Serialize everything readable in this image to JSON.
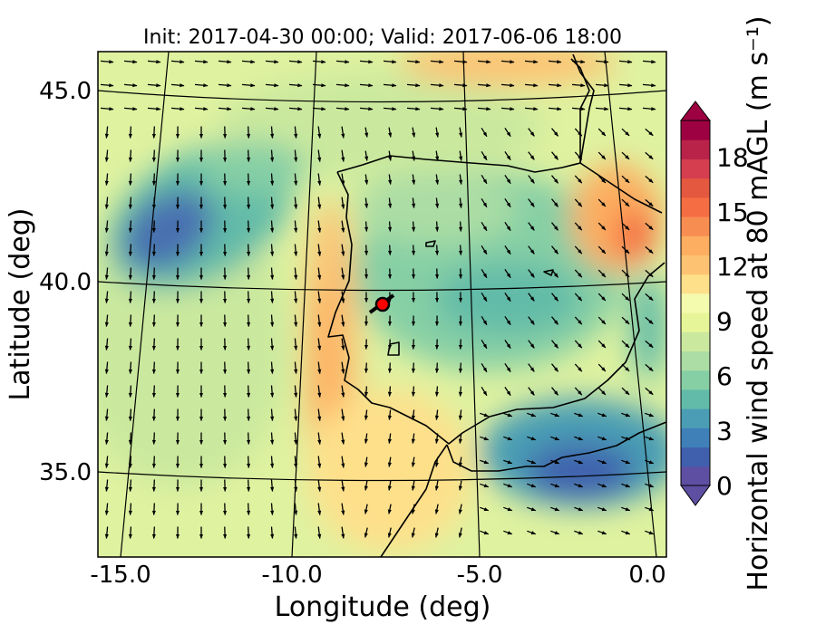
{
  "title": "Init: 2017-04-30 00:00; Valid: 2017-06-06 18:00",
  "xlabel": "Longitude (deg)",
  "ylabel": "Latitude (deg)",
  "colorbar": {
    "label": "Horizontal wind speed at 80 mAGL (m s⁻¹)",
    "ticks": [
      "0",
      "3",
      "6",
      "9",
      "12",
      "15",
      "18"
    ],
    "range": [
      0,
      20
    ],
    "colors": [
      "#5e4fa2",
      "#4060ae",
      "#3f80b9",
      "#4a9db4",
      "#62bba8",
      "#86cfa5",
      "#abdda4",
      "#cbe99e",
      "#e6f598",
      "#f5fbae",
      "#fee08b",
      "#fdc373",
      "#fdae61",
      "#f88d52",
      "#f46d43",
      "#e4583f",
      "#d53e4f",
      "#b9234a",
      "#9e0142"
    ],
    "extend": "both"
  },
  "chart_data": {
    "type": "heatmap",
    "title": "Init: 2017-04-30 00:00; Valid: 2017-06-06 18:00",
    "xlabel": "Longitude (deg)",
    "ylabel": "Latitude (deg)",
    "xticks": [
      "-15.0",
      "-10.0",
      "-5.0",
      "0.0"
    ],
    "yticks": [
      "45.0",
      "40.0",
      "35.0"
    ],
    "xlim": [
      -15.8,
      0.2
    ],
    "ylim": [
      32.8,
      46.2
    ],
    "grid": true,
    "marker": {
      "lon": -7.6,
      "lat": 39.3,
      "color": "#ff0000"
    },
    "wind_regions": [
      {
        "name": "",
        "lon": -13.7,
        "lat": 41.0,
        "speed": 1.5
      },
      {
        "name": "",
        "lon": -9.2,
        "lat": 39.5,
        "speed": 12
      },
      {
        "name": "",
        "lon": -7.5,
        "lat": 45.9,
        "speed": 13
      },
      {
        "name": "",
        "lon": -4.0,
        "lat": 39.5,
        "speed": 4
      },
      {
        "name": "",
        "lon": -2.0,
        "lat": 34.5,
        "speed": 2
      },
      {
        "name": "",
        "lon": -0.5,
        "lat": 41.5,
        "speed": 14
      }
    ]
  }
}
